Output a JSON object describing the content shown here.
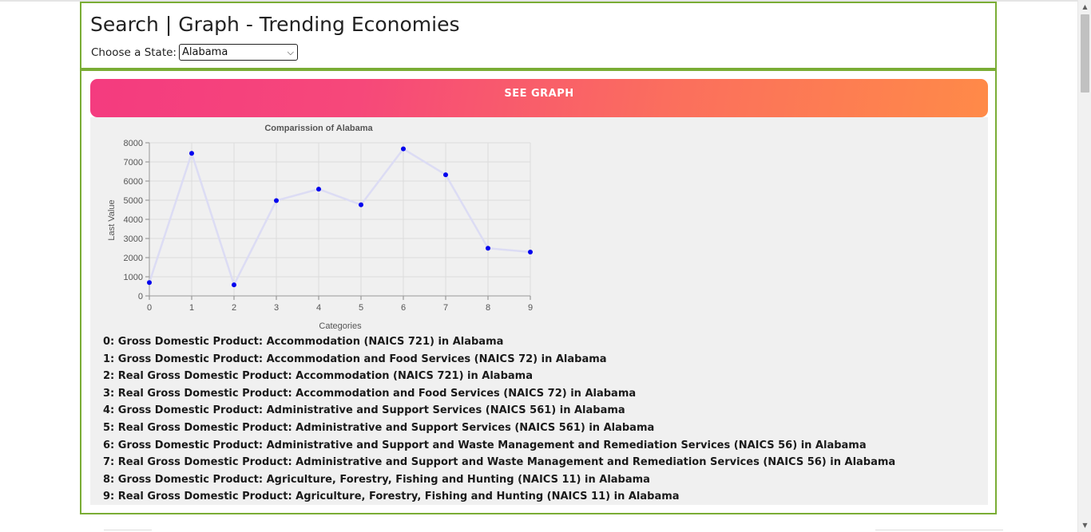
{
  "header": {
    "title": "Search | Graph - Trending Economies",
    "state_label": "Choose a State:",
    "state_value": "Alabama"
  },
  "graph_button": {
    "label": "SEE GRAPH"
  },
  "chart_data": {
    "type": "line",
    "title": "Comparission of Alabama",
    "xlabel": "Categories",
    "ylabel": "Last Value",
    "x": [
      0,
      1,
      2,
      3,
      4,
      5,
      6,
      7,
      8,
      9
    ],
    "series": [
      {
        "values": [
          700,
          7450,
          580,
          4980,
          5580,
          4760,
          7680,
          6330,
          2490,
          2290
        ]
      }
    ],
    "xlim": [
      0,
      9
    ],
    "ylim": [
      0,
      8000
    ],
    "y_ticks": [
      0,
      1000,
      2000,
      3000,
      4000,
      5000,
      6000,
      7000,
      8000
    ],
    "grid": true,
    "colors": {
      "point": "#0000ee",
      "line": "#dcdcf4",
      "grid": "#dcdcdc"
    }
  },
  "legend": {
    "items": [
      "0: Gross Domestic Product: Accommodation (NAICS 721) in Alabama",
      "1: Gross Domestic Product: Accommodation and Food Services (NAICS 72) in Alabama",
      "2: Real Gross Domestic Product: Accommodation (NAICS 721) in Alabama",
      "3: Real Gross Domestic Product: Accommodation and Food Services (NAICS 72) in Alabama",
      "4: Gross Domestic Product: Administrative and Support Services (NAICS 561) in Alabama",
      "5: Real Gross Domestic Product: Administrative and Support Services (NAICS 561) in Alabama",
      "6: Gross Domestic Product: Administrative and Support and Waste Management and Remediation Services (NAICS 56) in Alabama",
      "7: Real Gross Domestic Product: Administrative and Support and Waste Management and Remediation Services (NAICS 56) in Alabama",
      "8: Gross Domestic Product: Agriculture, Forestry, Fishing and Hunting (NAICS 11) in Alabama",
      "9: Real Gross Domestic Product: Agriculture, Forestry, Fishing and Hunting (NAICS 11) in Alabama"
    ]
  },
  "colors": {
    "border": "#7aad35",
    "panel": "#f0f0f0"
  }
}
